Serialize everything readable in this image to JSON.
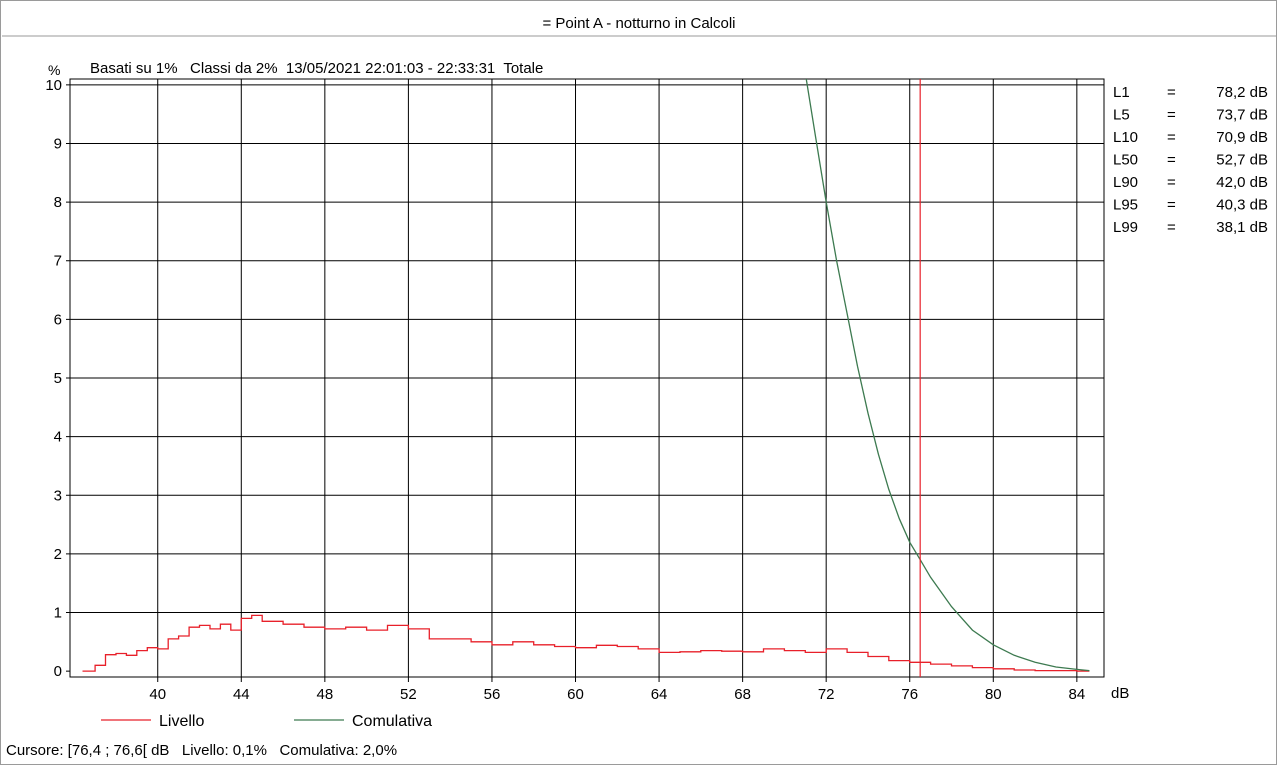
{
  "window": {
    "title": "= Point A - notturno in Calcoli"
  },
  "header": {
    "unit": "%",
    "info": "Basati su 1%   Classi da 2%  13/05/2021 22:01:03 - 22:33:31  Totale"
  },
  "stats": [
    {
      "label": "L1",
      "eq": "=",
      "value": "78,2 dB"
    },
    {
      "label": "L5",
      "eq": "=",
      "value": "73,7 dB"
    },
    {
      "label": "L10",
      "eq": "=",
      "value": "70,9 dB"
    },
    {
      "label": "L50",
      "eq": "=",
      "value": "52,7 dB"
    },
    {
      "label": "L90",
      "eq": "=",
      "value": "42,0 dB"
    },
    {
      "label": "L95",
      "eq": "=",
      "value": "40,3 dB"
    },
    {
      "label": "L99",
      "eq": "=",
      "value": "38,1 dB"
    }
  ],
  "legend": [
    {
      "name": "Livello",
      "color": "#e8202a"
    },
    {
      "name": "Comulativa",
      "color": "#3d7a50"
    }
  ],
  "status": {
    "cursor": "Cursore: [76,4 ; 76,6[ dB   Livello: 0,1%   Comulativa: 2,0%"
  },
  "chart_data": {
    "type": "line",
    "xlabel": "dB",
    "ylabel": "%",
    "xlim": [
      35.8,
      85.3
    ],
    "ylim": [
      -0.1,
      10.1
    ],
    "x_ticks": [
      40,
      44,
      48,
      52,
      56,
      60,
      64,
      68,
      72,
      76,
      80,
      84
    ],
    "y_ticks": [
      0,
      1,
      2,
      3,
      4,
      5,
      6,
      7,
      8,
      9,
      10
    ],
    "grid": true,
    "cursor_x": 76.5,
    "series": [
      {
        "name": "Livello",
        "color": "#e8202a",
        "step": true,
        "x": [
          36.4,
          37.0,
          37.5,
          38.0,
          38.5,
          39.0,
          39.5,
          40.0,
          40.5,
          41.0,
          41.5,
          42.0,
          42.5,
          43.0,
          43.5,
          44.0,
          44.5,
          45.0,
          46.0,
          47.0,
          48.0,
          49.0,
          50.0,
          51.0,
          52.0,
          53.0,
          54.0,
          55.0,
          56.0,
          57.0,
          58.0,
          59.0,
          60.0,
          61.0,
          62.0,
          63.0,
          64.0,
          65.0,
          66.0,
          67.0,
          68.0,
          69.0,
          70.0,
          71.0,
          72.0,
          73.0,
          74.0,
          75.0,
          76.0,
          77.0,
          78.0,
          79.0,
          80.0,
          81.0,
          82.0,
          83.0,
          84.0,
          84.6
        ],
        "y": [
          0.0,
          0.1,
          0.28,
          0.3,
          0.27,
          0.35,
          0.4,
          0.38,
          0.55,
          0.6,
          0.75,
          0.78,
          0.72,
          0.8,
          0.7,
          0.9,
          0.95,
          0.85,
          0.8,
          0.75,
          0.72,
          0.75,
          0.7,
          0.78,
          0.72,
          0.55,
          0.55,
          0.5,
          0.45,
          0.5,
          0.45,
          0.42,
          0.4,
          0.44,
          0.42,
          0.38,
          0.32,
          0.33,
          0.35,
          0.34,
          0.33,
          0.38,
          0.35,
          0.32,
          0.38,
          0.32,
          0.25,
          0.18,
          0.15,
          0.12,
          0.09,
          0.06,
          0.04,
          0.02,
          0.01,
          0.01,
          0.0,
          0.0
        ]
      },
      {
        "name": "Comulativa",
        "color": "#3d7a50",
        "step": false,
        "x": [
          71.0,
          71.5,
          72.0,
          72.5,
          73.0,
          73.5,
          74.0,
          74.5,
          75.0,
          75.5,
          76.0,
          76.5,
          77.0,
          77.5,
          78.0,
          78.5,
          79.0,
          80.0,
          81.0,
          82.0,
          83.0,
          84.0,
          84.6
        ],
        "y": [
          10.2,
          9.1,
          8.0,
          7.0,
          6.1,
          5.2,
          4.4,
          3.7,
          3.1,
          2.6,
          2.2,
          1.9,
          1.6,
          1.35,
          1.1,
          0.9,
          0.7,
          0.45,
          0.27,
          0.15,
          0.07,
          0.03,
          0.01
        ]
      }
    ]
  }
}
